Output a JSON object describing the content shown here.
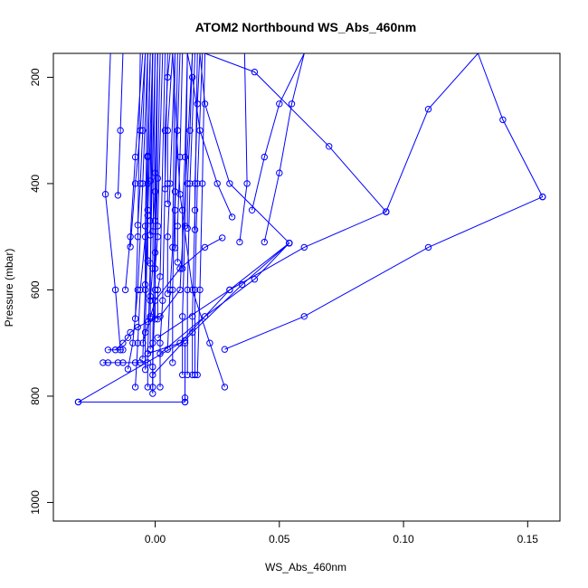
{
  "chart_data": {
    "type": "line",
    "title": "ATOM2 Northbound WS_Abs_460nm",
    "xlabel": "WS_Abs_460nm",
    "ylabel": "Pressure (mbar)",
    "xlim": [
      -0.041,
      0.163
    ],
    "ylim": [
      1035,
      155
    ],
    "y_reversed": true,
    "grid": false,
    "legend": "none",
    "x_ticks": [
      {
        "value": 0.0,
        "label": "0.00"
      },
      {
        "value": 0.05,
        "label": "0.05"
      },
      {
        "value": 0.1,
        "label": "0.10"
      },
      {
        "value": 0.15,
        "label": "0.15"
      }
    ],
    "y_ticks": [
      {
        "value": 200,
        "label": "200"
      },
      {
        "value": 400,
        "label": "400"
      },
      {
        "value": 600,
        "label": "600"
      },
      {
        "value": 800,
        "label": "800"
      },
      {
        "value": 1000,
        "label": "1000"
      }
    ],
    "color": "#0000ff",
    "series": [
      {
        "x": [
          -0.031,
          0.012
        ],
        "y": [
          811,
          811
        ]
      },
      {
        "x": [
          -0.031,
          0.012
        ],
        "y": [
          811,
          695
        ]
      },
      {
        "x": [
          0.012,
          0.012,
          0.012
        ],
        "y": [
          811,
          803,
          700
        ]
      },
      {
        "x": [
          -0.021,
          -0.019,
          -0.015,
          -0.013,
          -0.008,
          -0.006,
          -0.003
        ],
        "y": [
          737,
          737,
          737,
          737,
          737,
          737,
          737
        ]
      },
      {
        "x": [
          -0.019,
          -0.016,
          -0.014,
          -0.013
        ],
        "y": [
          713,
          713,
          713,
          713
        ]
      },
      {
        "x": [
          -0.016,
          -0.013,
          -0.011,
          -0.01,
          -0.007,
          -0.003,
          0.002,
          0.01,
          0.015
        ],
        "y": [
          713,
          700,
          690,
          680,
          670,
          660,
          650,
          600,
          150
        ]
      },
      {
        "x": [
          -0.014,
          -0.016,
          -0.02,
          -0.018,
          -0.011
        ],
        "y": [
          713,
          600,
          420,
          150,
          150
        ]
      },
      {
        "x": [
          -0.015,
          -0.014,
          -0.013
        ],
        "y": [
          422,
          300,
          150
        ]
      },
      {
        "x": [
          -0.01,
          -0.008,
          -0.006,
          -0.004
        ],
        "y": [
          519,
          400,
          300,
          150
        ]
      },
      {
        "x": [
          -0.012,
          -0.01,
          -0.008,
          -0.005
        ],
        "y": [
          600,
          500,
          350,
          150
        ]
      },
      {
        "x": [
          -0.011,
          -0.009,
          -0.007,
          -0.005,
          -0.003
        ],
        "y": [
          749,
          700,
          600,
          400,
          150
        ]
      },
      {
        "x": [
          -0.008,
          -0.007,
          -0.006,
          -0.004,
          -0.003
        ],
        "y": [
          783,
          700,
          600,
          500,
          150
        ]
      },
      {
        "x": [
          -0.008,
          -0.007,
          -0.006
        ],
        "y": [
          654,
          500,
          150
        ]
      },
      {
        "x": [
          -0.007,
          -0.006,
          -0.005,
          -0.004
        ],
        "y": [
          478,
          400,
          300,
          150
        ]
      },
      {
        "x": [
          -0.005,
          -0.004,
          -0.003,
          -0.002
        ],
        "y": [
          730,
          600,
          400,
          150
        ]
      },
      {
        "x": [
          -0.004,
          -0.004,
          -0.003,
          -0.002
        ],
        "y": [
          590,
          480,
          350,
          150
        ]
      },
      {
        "x": [
          -0.004,
          -0.004,
          -0.003,
          -0.001
        ],
        "y": [
          750,
          680,
          460,
          150
        ]
      },
      {
        "x": [
          -0.003,
          -0.003,
          -0.002,
          0.0
        ],
        "y": [
          783,
          720,
          550,
          150
        ]
      },
      {
        "x": [
          -0.003,
          -0.003,
          -0.003,
          -0.002
        ],
        "y": [
          545,
          450,
          348,
          150
        ]
      },
      {
        "x": [
          -0.002,
          -0.002,
          -0.002,
          -0.001
        ],
        "y": [
          497,
          470,
          395,
          150
        ]
      },
      {
        "x": [
          -0.002,
          -0.002,
          -0.002,
          -0.001
        ],
        "y": [
          712,
          650,
          612,
          150
        ]
      },
      {
        "x": [
          -0.002,
          -0.002,
          -0.001,
          0.0
        ],
        "y": [
          654,
          620,
          560,
          150
        ]
      },
      {
        "x": [
          -0.001,
          -0.001,
          0.0,
          0.001
        ],
        "y": [
          783,
          700,
          470,
          150
        ]
      },
      {
        "x": [
          -0.001,
          -0.001,
          0.0,
          0.001
        ],
        "y": [
          795,
          745,
          600,
          150
        ]
      },
      {
        "x": [
          -0.001,
          0.0,
          0.0,
          0.001
        ],
        "y": [
          490,
          415,
          380,
          150
        ]
      },
      {
        "x": [
          0.0,
          0.0,
          0.001,
          0.002
        ],
        "y": [
          655,
          530,
          390,
          150
        ]
      },
      {
        "x": [
          0.0,
          0.001,
          0.001,
          0.003
        ],
        "y": [
          560,
          500,
          480,
          150
        ]
      },
      {
        "x": [
          0.001,
          0.001,
          0.002,
          0.004
        ],
        "y": [
          655,
          600,
          575,
          150
        ]
      },
      {
        "x": [
          0.002,
          0.002,
          0.003,
          0.005
        ],
        "y": [
          783,
          700,
          620,
          150
        ]
      },
      {
        "x": [
          0.004,
          0.004,
          0.005,
          0.006
        ],
        "y": [
          410,
          300,
          200,
          150
        ]
      },
      {
        "x": [
          0.005,
          0.005,
          0.005,
          0.007
        ],
        "y": [
          438,
          400,
          300,
          150
        ]
      },
      {
        "x": [
          0.005,
          0.005,
          0.006,
          0.008
        ],
        "y": [
          607,
          500,
          400,
          150
        ]
      },
      {
        "x": [
          0.005,
          0.006,
          0.007,
          0.008
        ],
        "y": [
          712,
          600,
          520,
          150
        ]
      },
      {
        "x": [
          0.007,
          0.007,
          0.008,
          0.009
        ],
        "y": [
          737,
          600,
          415,
          150
        ]
      },
      {
        "x": [
          0.008,
          0.008,
          0.009,
          0.01
        ],
        "y": [
          521,
          450,
          300,
          150
        ]
      },
      {
        "x": [
          0.009,
          0.009,
          0.01,
          0.011
        ],
        "y": [
          548,
          480,
          350,
          150
        ]
      },
      {
        "x": [
          0.011,
          0.011,
          0.012,
          0.013
        ],
        "y": [
          560,
          450,
          350,
          150
        ]
      },
      {
        "x": [
          0.011,
          0.011,
          0.012,
          0.013
        ],
        "y": [
          760,
          650,
          480,
          150
        ]
      },
      {
        "x": [
          0.013,
          0.013,
          0.014,
          0.015
        ],
        "y": [
          484,
          400,
          300,
          150
        ]
      },
      {
        "x": [
          0.013,
          0.013,
          0.014,
          0.016
        ],
        "y": [
          760,
          600,
          400,
          150
        ]
      },
      {
        "x": [
          0.015,
          0.015,
          0.016,
          0.017
        ],
        "y": [
          760,
          650,
          450,
          150
        ]
      },
      {
        "x": [
          0.016,
          0.016,
          0.017,
          0.018
        ],
        "y": [
          487,
          400,
          250,
          150
        ]
      },
      {
        "x": [
          0.016,
          0.016,
          0.017,
          0.019
        ],
        "y": [
          760,
          600,
          400,
          150
        ]
      },
      {
        "x": [
          0.017,
          0.018,
          0.019,
          0.02
        ],
        "y": [
          760,
          600,
          400,
          150
        ]
      },
      {
        "x": [
          0.028,
          0.022,
          0.015,
          0.01,
          0.007
        ],
        "y": [
          783,
          700,
          600,
          420,
          150
        ]
      },
      {
        "x": [
          0.031,
          0.025,
          0.018,
          0.015,
          0.013
        ],
        "y": [
          463,
          400,
          300,
          200,
          150
        ]
      },
      {
        "x": [
          0.027,
          0.02,
          0.01,
          0.0,
          -0.005
        ],
        "y": [
          502,
          520,
          560,
          620,
          700
        ]
      },
      {
        "x": [
          0.034,
          0.037,
          0.036
        ],
        "y": [
          510,
          400,
          150
        ]
      },
      {
        "x": [
          0.039,
          0.044,
          0.05,
          0.06
        ],
        "y": [
          450,
          350,
          250,
          150
        ]
      },
      {
        "x": [
          0.044,
          0.05,
          0.055,
          0.06
        ],
        "y": [
          510,
          380,
          250,
          150
        ]
      },
      {
        "x": [
          0.054,
          0.04,
          0.02,
          0.002
        ],
        "y": [
          512,
          580,
          650,
          720
        ]
      },
      {
        "x": [
          0.054,
          0.035,
          0.015,
          -0.001
        ],
        "y": [
          512,
          590,
          680,
          760
        ]
      },
      {
        "x": [
          0.054,
          0.03,
          0.01,
          -0.003
        ],
        "y": [
          512,
          600,
          700,
          720
        ]
      },
      {
        "x": [
          0.054,
          0.03,
          0.02,
          0.018
        ],
        "y": [
          512,
          400,
          250,
          150
        ]
      },
      {
        "x": [
          0.093,
          0.07,
          0.04,
          0.02
        ],
        "y": [
          453,
          330,
          190,
          150
        ]
      },
      {
        "x": [
          0.093,
          0.06,
          0.03,
          0.001
        ],
        "y": [
          453,
          520,
          600,
          690
        ]
      },
      {
        "x": [
          0.093,
          0.11,
          0.13
        ],
        "y": [
          453,
          260,
          150
        ]
      },
      {
        "x": [
          0.156,
          0.14,
          0.13
        ],
        "y": [
          425,
          280,
          150
        ]
      },
      {
        "x": [
          0.156,
          0.11,
          0.06,
          0.028
        ],
        "y": [
          425,
          520,
          650,
          712
        ]
      }
    ]
  }
}
